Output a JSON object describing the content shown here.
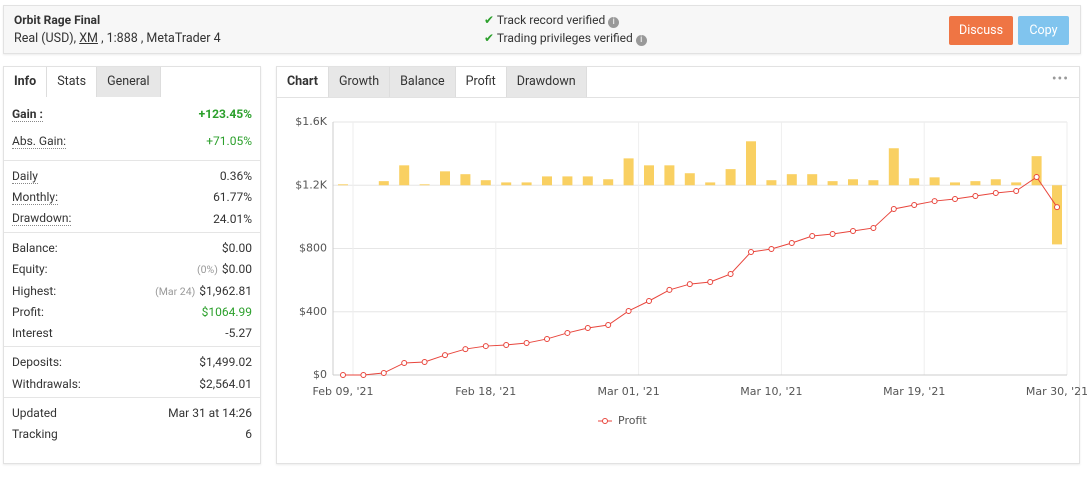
{
  "header": {
    "title": "Orbit Rage Final",
    "account": "Real (USD),",
    "broker": "XM",
    "leverage": ", 1:888 , MetaTrader 4",
    "verifications": [
      "Track record verified",
      "Trading privileges verified"
    ],
    "buttons": [
      "Discuss",
      "Copy"
    ]
  },
  "left_tabs": [
    "Info",
    "Stats",
    "General"
  ],
  "stats": {
    "groups": [
      [
        {
          "label": "Gain :",
          "value": "+123.45%"
        },
        {
          "label": "Abs. Gain:",
          "value": "+71.05%"
        }
      ],
      [
        {
          "label": "Daily",
          "value": "0.36%"
        },
        {
          "label": "Monthly:",
          "value": "61.77%"
        },
        {
          "label": "Drawdown:",
          "value": "24.01%"
        }
      ],
      [
        {
          "label": "Balance:",
          "value": "$0.00"
        },
        {
          "label": "Equity:",
          "note": "(0%)",
          "value": "$0.00"
        },
        {
          "label": "Highest:",
          "note": "(Mar 24)",
          "value": "$1,962.81"
        },
        {
          "label": "Profit:",
          "value": "$1064.99"
        },
        {
          "label": "Interest",
          "value": "-5.27"
        }
      ],
      [
        {
          "label": "Deposits:",
          "value": "$1,499.02"
        },
        {
          "label": "Withdrawals:",
          "value": "$2,564.01"
        }
      ],
      [
        {
          "label": "Updated",
          "value": "Mar 31 at 14:26"
        },
        {
          "label": "Tracking",
          "value": "6"
        }
      ]
    ]
  },
  "chart_tabs": [
    "Chart",
    "Growth",
    "Balance",
    "Profit",
    "Drawdown"
  ],
  "chart_data": {
    "type": "line",
    "categories": [
      "Feb 09, '21",
      null,
      null,
      null,
      null,
      null,
      null,
      "Feb 18, '21",
      null,
      null,
      null,
      null,
      null,
      null,
      "Mar 01, '21",
      null,
      null,
      null,
      null,
      null,
      null,
      "Mar 10, '21",
      null,
      null,
      null,
      null,
      null,
      null,
      "Mar 19, '21",
      null,
      null,
      null,
      null,
      null,
      null,
      "Mar 30, '21"
    ],
    "series": [
      {
        "name": "Profit",
        "color": "#e8453c",
        "values": [
          0,
          0,
          13,
          76,
          82,
          126,
          164,
          183,
          190,
          202,
          228,
          266,
          297,
          316,
          405,
          468,
          538,
          575,
          588,
          639,
          778,
          797,
          835,
          879,
          892,
          911,
          930,
          1050,
          1075,
          1100,
          1113,
          1132,
          1151,
          1164,
          1252,
          1062
        ]
      },
      {
        "type": "bar",
        "axis": "y2",
        "color": "#f9d062",
        "values": [
          3,
          0,
          13,
          63,
          3,
          44,
          35,
          16,
          9,
          9,
          28,
          28,
          28,
          19,
          85,
          63,
          63,
          38,
          9,
          51,
          139,
          16,
          35,
          35,
          13,
          19,
          16,
          117,
          22,
          25,
          9,
          13,
          19,
          9,
          92,
          -187
        ]
      }
    ],
    "ylim": [
      0,
      1600
    ],
    "yticks": [
      {
        "value": 0,
        "label": "$0"
      },
      {
        "value": 400,
        "label": "$400"
      },
      {
        "value": 800,
        "label": "$800"
      },
      {
        "value": 1200,
        "label": "$1.2K"
      },
      {
        "value": 1600,
        "label": "$1.6K"
      }
    ],
    "y2lim": [
      -600,
      200
    ],
    "grid": true,
    "legend": "bottom"
  }
}
